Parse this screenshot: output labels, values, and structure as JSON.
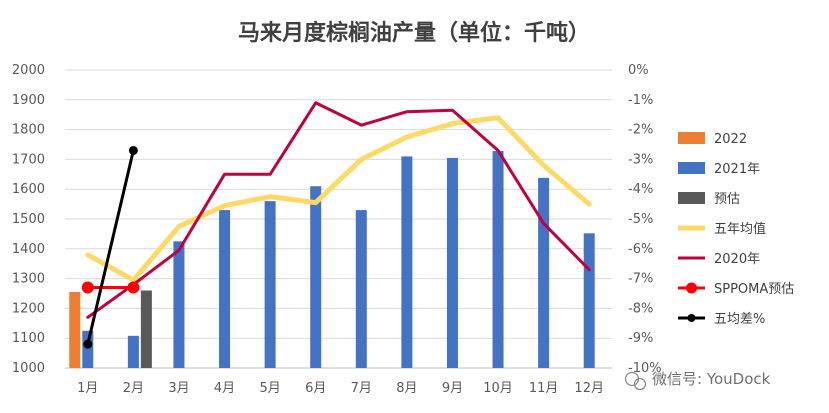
{
  "chart_data": {
    "type": "bar",
    "title": "马来月度棕榈油产量（单位：千吨）",
    "categories": [
      "1月",
      "2月",
      "3月",
      "4月",
      "5月",
      "6月",
      "7月",
      "8月",
      "9月",
      "10月",
      "11月",
      "12月"
    ],
    "ylim": [
      1000,
      2000
    ],
    "yticks": [
      1000,
      1100,
      1200,
      1300,
      1400,
      1500,
      1600,
      1700,
      1800,
      1900,
      2000
    ],
    "y2lim": [
      -10,
      0
    ],
    "y2ticks": [
      "0%",
      "-1%",
      "-2%",
      "-3%",
      "-4%",
      "-5%",
      "-6%",
      "-7%",
      "-8%",
      "-9%",
      "-10%"
    ],
    "legend_position": "right",
    "series": [
      {
        "name": "2022",
        "kind": "bar",
        "axis": "left",
        "color": "#ED7D31",
        "values": [
          1255,
          null,
          null,
          null,
          null,
          null,
          null,
          null,
          null,
          null,
          null,
          null
        ]
      },
      {
        "name": "2021年",
        "kind": "bar",
        "axis": "left",
        "color": "#4472C4",
        "values": [
          1125,
          1108,
          1425,
          1530,
          1560,
          1610,
          1530,
          1710,
          1705,
          1728,
          1638,
          1452
        ]
      },
      {
        "name": "预估",
        "kind": "bar",
        "axis": "left",
        "color": "#595959",
        "values": [
          null,
          1260,
          null,
          null,
          null,
          null,
          null,
          null,
          null,
          null,
          null,
          null
        ]
      },
      {
        "name": "五年均值",
        "kind": "line",
        "axis": "left",
        "color": "#FFD966",
        "values": [
          1380,
          1295,
          1475,
          1545,
          1575,
          1555,
          1700,
          1775,
          1820,
          1840,
          1680,
          1550
        ]
      },
      {
        "name": "2020年",
        "kind": "line",
        "axis": "left",
        "color": "#C00040",
        "values": [
          1170,
          1280,
          1395,
          1650,
          1650,
          1890,
          1815,
          1860,
          1865,
          1730,
          1485,
          1330
        ]
      },
      {
        "name": "SPPOMA预估",
        "kind": "line-marker",
        "axis": "right",
        "color": "#FF0000",
        "values": [
          -7.3,
          -7.3,
          null,
          null,
          null,
          null,
          null,
          null,
          null,
          null,
          null,
          null
        ]
      },
      {
        "name": "五均差%",
        "kind": "line-marker",
        "axis": "right",
        "color": "#000000",
        "values": [
          -9.2,
          -2.7,
          null,
          null,
          null,
          null,
          null,
          null,
          null,
          null,
          null,
          null
        ]
      }
    ]
  },
  "watermark": {
    "text": "微信号: YouDock",
    "icon": "wechat-icon"
  }
}
